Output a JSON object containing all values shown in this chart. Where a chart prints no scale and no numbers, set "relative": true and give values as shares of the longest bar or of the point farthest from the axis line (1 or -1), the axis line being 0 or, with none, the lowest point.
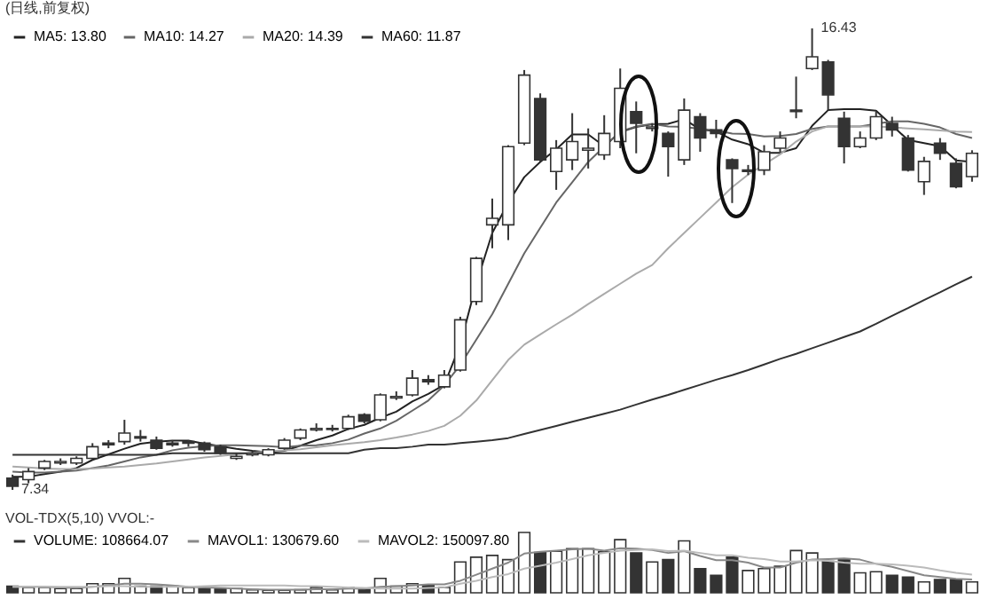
{
  "chart_data": [
    {
      "type": "candlestick",
      "title": "(日线,前复权)",
      "legend": "top left",
      "tick_labels": false,
      "categories": [
        null,
        null,
        null,
        null,
        null,
        null,
        null,
        null,
        null,
        null,
        null,
        null,
        null,
        null,
        null,
        null,
        null,
        null,
        null,
        null,
        null,
        null,
        null,
        null,
        null,
        null,
        null,
        null,
        null,
        null,
        null,
        null,
        null,
        null,
        null,
        null,
        null,
        null,
        null,
        null,
        null,
        null,
        null,
        null,
        null,
        null,
        null,
        null,
        null,
        null,
        null,
        null,
        null,
        null,
        null,
        null,
        null,
        null,
        null,
        null,
        null
      ],
      "ohlc": [
        [
          7.57,
          7.64,
          7.34,
          7.41
        ],
        [
          7.54,
          7.77,
          7.47,
          7.7
        ],
        [
          7.77,
          7.93,
          7.73,
          7.9
        ],
        [
          7.87,
          7.96,
          7.83,
          7.9
        ],
        [
          7.87,
          8.0,
          7.83,
          7.96
        ],
        [
          7.96,
          8.26,
          7.93,
          8.19
        ],
        [
          8.23,
          8.32,
          8.16,
          8.26
        ],
        [
          8.29,
          8.72,
          8.23,
          8.46
        ],
        [
          8.36,
          8.52,
          8.29,
          8.39
        ],
        [
          8.32,
          8.39,
          8.13,
          8.16
        ],
        [
          8.23,
          8.32,
          8.19,
          8.26
        ],
        [
          8.26,
          8.32,
          8.19,
          8.29
        ],
        [
          8.26,
          8.29,
          8.09,
          8.13
        ],
        [
          8.19,
          8.23,
          8.03,
          8.06
        ],
        [
          7.96,
          8.06,
          7.93,
          8.0
        ],
        [
          8.03,
          8.09,
          8.0,
          8.06
        ],
        [
          8.03,
          8.16,
          8.0,
          8.13
        ],
        [
          8.16,
          8.36,
          8.13,
          8.32
        ],
        [
          8.36,
          8.55,
          8.32,
          8.52
        ],
        [
          8.52,
          8.65,
          8.49,
          8.55
        ],
        [
          8.53,
          8.62,
          8.49,
          8.55
        ],
        [
          8.55,
          8.82,
          8.52,
          8.78
        ],
        [
          8.82,
          8.85,
          8.65,
          8.69
        ],
        [
          8.72,
          9.24,
          8.69,
          9.21
        ],
        [
          9.15,
          9.28,
          9.11,
          9.18
        ],
        [
          9.21,
          9.7,
          9.18,
          9.54
        ],
        [
          9.51,
          9.6,
          9.41,
          9.47
        ],
        [
          9.37,
          9.7,
          9.34,
          9.6
        ],
        [
          9.7,
          10.75,
          9.67,
          10.69
        ],
        [
          11.05,
          11.93,
          10.98,
          11.9
        ],
        [
          12.56,
          13.08,
          12.1,
          12.69
        ],
        [
          12.56,
          14.13,
          12.26,
          14.1
        ],
        [
          14.17,
          15.61,
          14.13,
          15.51
        ],
        [
          15.05,
          15.15,
          13.81,
          13.84
        ],
        [
          13.61,
          14.23,
          13.25,
          14.07
        ],
        [
          13.84,
          14.76,
          13.64,
          14.2
        ],
        [
          14.03,
          14.46,
          13.67,
          14.07
        ],
        [
          13.94,
          14.72,
          13.84,
          14.36
        ],
        [
          14.2,
          15.64,
          14.07,
          15.25
        ],
        [
          14.79,
          14.99,
          13.97,
          14.56
        ],
        [
          14.46,
          14.56,
          14.4,
          14.49
        ],
        [
          14.36,
          14.4,
          13.51,
          14.1
        ],
        [
          13.84,
          15.05,
          13.74,
          14.82
        ],
        [
          14.69,
          14.76,
          14.0,
          14.27
        ],
        [
          14.43,
          14.63,
          14.27,
          14.36
        ],
        [
          13.84,
          13.87,
          12.99,
          13.67
        ],
        [
          13.61,
          13.74,
          13.54,
          13.64
        ],
        [
          13.64,
          14.13,
          13.54,
          14.0
        ],
        [
          14.07,
          14.4,
          14.0,
          14.27
        ],
        [
          14.79,
          15.48,
          14.66,
          14.82
        ],
        [
          15.64,
          16.43,
          15.61,
          15.87
        ],
        [
          15.77,
          15.81,
          14.82,
          15.12
        ],
        [
          14.66,
          14.79,
          13.77,
          14.1
        ],
        [
          14.1,
          14.4,
          14.07,
          14.27
        ],
        [
          14.27,
          14.79,
          14.23,
          14.69
        ],
        [
          14.56,
          14.69,
          14.3,
          14.43
        ],
        [
          14.27,
          14.33,
          13.61,
          13.64
        ],
        [
          13.41,
          13.9,
          13.15,
          13.81
        ],
        [
          14.17,
          14.27,
          13.84,
          13.97
        ],
        [
          13.77,
          13.87,
          13.28,
          13.31
        ],
        [
          13.51,
          14.03,
          13.41,
          13.97
        ]
      ],
      "series": [
        {
          "name": "MA5: 13.80",
          "type": "line",
          "color": "#222222",
          "values": [
            7.6,
            7.6,
            7.65,
            7.7,
            7.77,
            7.93,
            8.04,
            8.15,
            8.25,
            8.29,
            8.31,
            8.31,
            8.25,
            8.2,
            8.15,
            8.11,
            8.08,
            8.11,
            8.21,
            8.32,
            8.41,
            8.54,
            8.62,
            8.76,
            8.88,
            9.08,
            9.23,
            9.41,
            10.2,
            11.4,
            12.4,
            13.0,
            13.5,
            13.8,
            14.05,
            14.34,
            14.34,
            14.11,
            14.39,
            14.49,
            14.54,
            14.55,
            14.64,
            14.44,
            14.4,
            14.24,
            14.15,
            13.98,
            13.98,
            14.07,
            14.51,
            14.82,
            14.84,
            14.84,
            14.81,
            14.52,
            14.23,
            14.17,
            14.11,
            13.83,
            13.8
          ]
        },
        {
          "name": "MA10: 14.27",
          "type": "line",
          "color": "#666666",
          "values": [
            7.7,
            7.68,
            7.68,
            7.7,
            7.72,
            7.77,
            7.82,
            7.9,
            7.98,
            8.03,
            8.12,
            8.17,
            8.2,
            8.22,
            8.22,
            8.21,
            8.2,
            8.18,
            8.21,
            8.22,
            8.26,
            8.33,
            8.45,
            8.55,
            8.7,
            8.9,
            9.1,
            9.4,
            9.8,
            10.3,
            10.8,
            11.4,
            12.0,
            12.5,
            13.0,
            13.4,
            13.8,
            14.1,
            14.4,
            14.5,
            14.55,
            14.5,
            14.49,
            14.45,
            14.42,
            14.36,
            14.35,
            14.3,
            14.31,
            14.35,
            14.45,
            14.5,
            14.5,
            14.5,
            14.55,
            14.6,
            14.6,
            14.55,
            14.48,
            14.35,
            14.27
          ]
        },
        {
          "name": "MA20: 14.39",
          "type": "line",
          "color": "#aaaaaa",
          "values": [
            7.8,
            7.78,
            7.76,
            7.75,
            7.75,
            7.76,
            7.78,
            7.8,
            7.83,
            7.86,
            7.9,
            7.94,
            7.98,
            8.01,
            8.04,
            8.07,
            8.1,
            8.12,
            8.14,
            8.18,
            8.22,
            8.25,
            8.28,
            8.32,
            8.37,
            8.43,
            8.5,
            8.6,
            8.8,
            9.1,
            9.5,
            9.9,
            10.2,
            10.4,
            10.6,
            10.79,
            11.0,
            11.2,
            11.4,
            11.6,
            11.77,
            12.1,
            12.4,
            12.7,
            13.0,
            13.3,
            13.55,
            13.75,
            13.95,
            14.2,
            14.4,
            14.5,
            14.5,
            14.5,
            14.5,
            14.48,
            14.46,
            14.44,
            14.42,
            14.4,
            14.39
          ]
        },
        {
          "name": "MA60: 11.87",
          "type": "line",
          "color": "#333333",
          "values": [
            8.03,
            8.03,
            8.03,
            8.03,
            8.03,
            8.03,
            8.03,
            8.03,
            8.03,
            8.03,
            8.06,
            8.06,
            8.06,
            8.06,
            8.06,
            8.06,
            8.06,
            8.06,
            8.06,
            8.06,
            8.06,
            8.06,
            8.13,
            8.16,
            8.16,
            8.19,
            8.23,
            8.23,
            8.26,
            8.29,
            8.32,
            8.36,
            8.44,
            8.52,
            8.6,
            8.68,
            8.76,
            8.84,
            8.92,
            9.02,
            9.12,
            9.21,
            9.31,
            9.41,
            9.51,
            9.6,
            9.7,
            9.81,
            9.92,
            10.02,
            10.13,
            10.24,
            10.35,
            10.46,
            10.61,
            10.77,
            10.92,
            11.08,
            11.23,
            11.39,
            11.54
          ]
        }
      ],
      "annotations": [
        "16.43",
        "7.34"
      ]
    },
    {
      "type": "bar",
      "title": "VOL-TDX(5,10) VVOL:-",
      "legend": "top left",
      "tick_labels": false,
      "relative": true,
      "categories": [
        null,
        null,
        null,
        null,
        null,
        null,
        null,
        null,
        null,
        null,
        null,
        null,
        null,
        null,
        null,
        null,
        null,
        null,
        null,
        null,
        null,
        null,
        null,
        null,
        null,
        null,
        null,
        null,
        null,
        null,
        null,
        null,
        null,
        null,
        null,
        null,
        null,
        null,
        null,
        null,
        null,
        null,
        null,
        null,
        null,
        null,
        null,
        null,
        null,
        null,
        null,
        null,
        null,
        null,
        null,
        null,
        null,
        null,
        null,
        null,
        null
      ],
      "series": [
        {
          "name": "VOLUME: 108664.07",
          "type": "bar",
          "color": "#333333",
          "colors": [
            "#333333",
            "#ffffff",
            "#ffffff",
            "#ffffff",
            "#ffffff",
            "#ffffff",
            "#ffffff",
            "#ffffff",
            "#ffffff",
            "#333333",
            "#ffffff",
            "#ffffff",
            "#333333",
            "#333333",
            "#ffffff",
            "#ffffff",
            "#ffffff",
            "#ffffff",
            "#ffffff",
            "#ffffff",
            "#ffffff",
            "#ffffff",
            "#333333",
            "#ffffff",
            "#ffffff",
            "#ffffff",
            "#333333",
            "#ffffff",
            "#ffffff",
            "#ffffff",
            "#ffffff",
            "#ffffff",
            "#ffffff",
            "#333333",
            "#ffffff",
            "#ffffff",
            "#ffffff",
            "#ffffff",
            "#ffffff",
            "#333333",
            "#ffffff",
            "#333333",
            "#ffffff",
            "#333333",
            "#333333",
            "#333333",
            "#ffffff",
            "#ffffff",
            "#ffffff",
            "#ffffff",
            "#ffffff",
            "#333333",
            "#333333",
            "#ffffff",
            "#ffffff",
            "#333333",
            "#333333",
            "#ffffff",
            "#333333",
            "#333333",
            "#ffffff"
          ],
          "values": [
            0.11,
            0.09,
            0.09,
            0.07,
            0.07,
            0.15,
            0.15,
            0.24,
            0.11,
            0.11,
            0.11,
            0.09,
            0.07,
            0.07,
            0.07,
            0.05,
            0.04,
            0.04,
            0.05,
            0.09,
            0.05,
            0.09,
            0.07,
            0.24,
            0.11,
            0.15,
            0.13,
            0.09,
            0.51,
            0.59,
            0.62,
            0.55,
            1,
            0.67,
            0.69,
            0.73,
            0.73,
            0.68,
            0.88,
            0.66,
            0.51,
            0.55,
            0.86,
            0.4,
            0.29,
            0.59,
            0.37,
            0.4,
            0.44,
            0.7,
            0.66,
            0.52,
            0.55,
            0.33,
            0.35,
            0.29,
            0.26,
            0.18,
            0.22,
            0.22,
            0.18
          ]
        },
        {
          "name": "MAVOL1: 130679.60",
          "type": "line",
          "color": "#888888",
          "values": [
            0.1,
            0.1,
            0.1,
            0.09,
            0.08,
            0.1,
            0.12,
            0.15,
            0.15,
            0.14,
            0.12,
            0.1,
            0.09,
            0.08,
            0.07,
            0.06,
            0.05,
            0.05,
            0.05,
            0.06,
            0.06,
            0.07,
            0.07,
            0.1,
            0.11,
            0.12,
            0.14,
            0.14,
            0.2,
            0.3,
            0.4,
            0.5,
            0.65,
            0.68,
            0.7,
            0.72,
            0.73,
            0.7,
            0.74,
            0.73,
            0.71,
            0.66,
            0.69,
            0.61,
            0.54,
            0.54,
            0.5,
            0.42,
            0.42,
            0.5,
            0.55,
            0.56,
            0.57,
            0.55,
            0.48,
            0.43,
            0.36,
            0.29,
            0.26,
            0.23,
            0.22
          ]
        },
        {
          "name": "MAVOL2: 150097.80",
          "type": "line",
          "color": "#bbbbbb",
          "values": [
            0.1,
            0.1,
            0.1,
            0.1,
            0.1,
            0.1,
            0.11,
            0.11,
            0.1,
            0.1,
            0.1,
            0.1,
            0.11,
            0.12,
            0.12,
            0.12,
            0.12,
            0.12,
            0.11,
            0.11,
            0.1,
            0.09,
            0.08,
            0.07,
            0.07,
            0.07,
            0.08,
            0.09,
            0.15,
            0.2,
            0.26,
            0.31,
            0.4,
            0.45,
            0.5,
            0.56,
            0.62,
            0.66,
            0.7,
            0.71,
            0.72,
            0.69,
            0.7,
            0.66,
            0.62,
            0.62,
            0.58,
            0.56,
            0.52,
            0.52,
            0.54,
            0.53,
            0.5,
            0.48,
            0.48,
            0.47,
            0.45,
            0.42,
            0.37,
            0.33,
            0.3
          ]
        }
      ]
    }
  ]
}
